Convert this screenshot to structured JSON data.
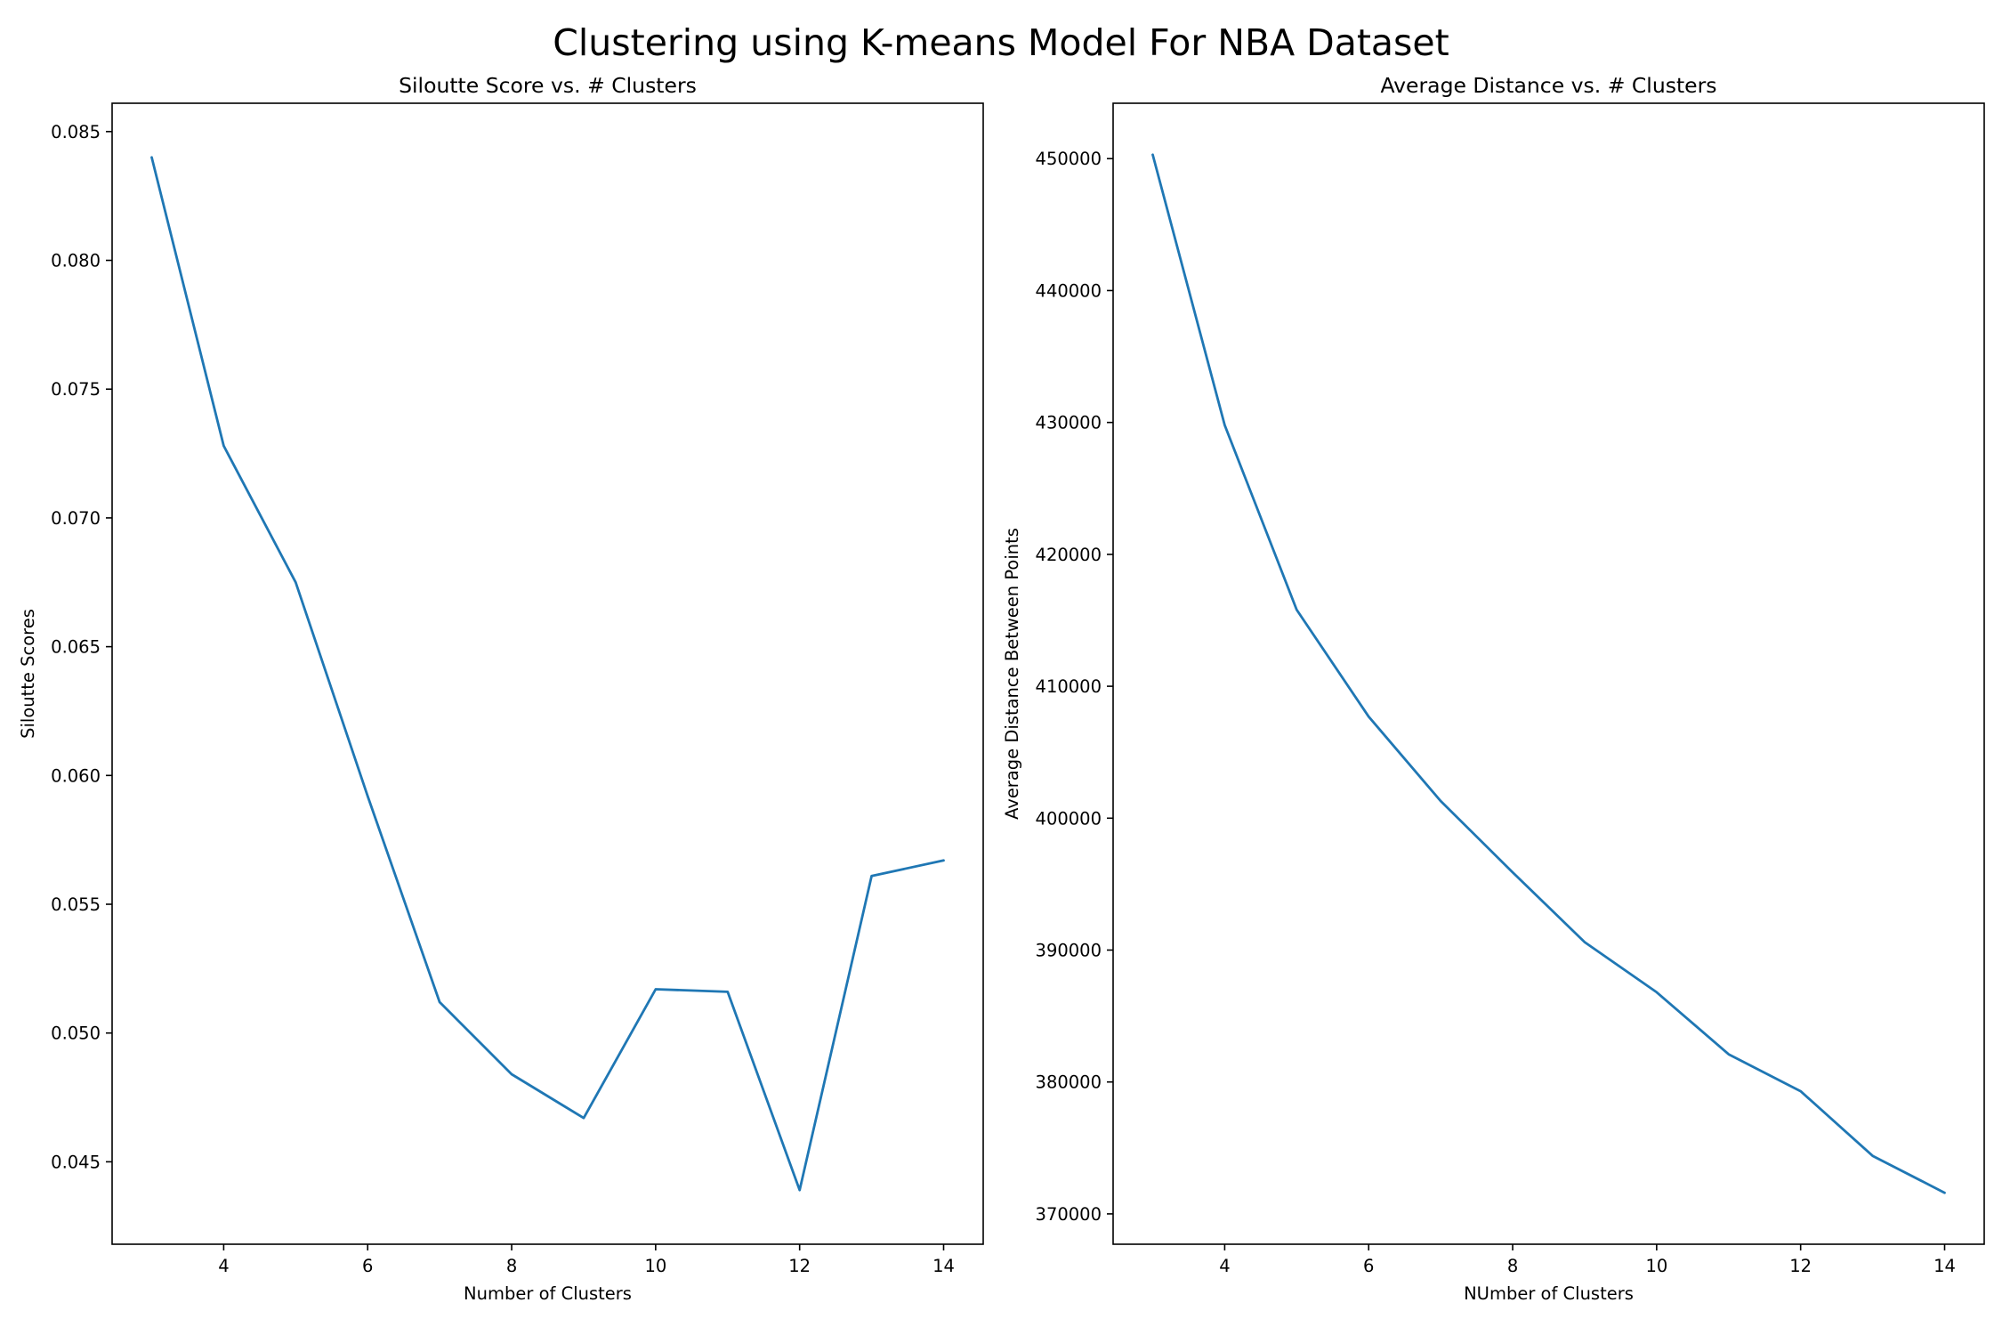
{
  "figure": {
    "title": "Clustering using K-means Model For NBA Dataset"
  },
  "chart_data": [
    {
      "type": "line",
      "title": "Siloutte Score vs. # Clusters",
      "xlabel": "Number of Clusters",
      "ylabel": "Siloutte Scores",
      "xlim": [
        2.45,
        14.55
      ],
      "ylim": [
        0.0418,
        0.0861
      ],
      "xticks": [
        4,
        6,
        8,
        10,
        12,
        14
      ],
      "xtick_labels": [
        "4",
        "6",
        "8",
        "10",
        "12",
        "14"
      ],
      "yticks": [
        0.045,
        0.05,
        0.055,
        0.06,
        0.065,
        0.07,
        0.075,
        0.08,
        0.085
      ],
      "ytick_labels": [
        "0.045",
        "0.050",
        "0.055",
        "0.060",
        "0.065",
        "0.070",
        "0.075",
        "0.080",
        "0.085"
      ],
      "grid": false,
      "color": "#1f77b4",
      "x": [
        3,
        4,
        5,
        6,
        7,
        8,
        9,
        10,
        11,
        12,
        13,
        14
      ],
      "y": [
        0.084,
        0.0728,
        0.0675,
        0.0592,
        0.0512,
        0.0484,
        0.0467,
        0.0517,
        0.0516,
        0.0439,
        0.0561,
        0.0567
      ]
    },
    {
      "type": "line",
      "title": "Average Distance vs. # Clusters",
      "xlabel": "NUmber of Clusters",
      "ylabel": "Average Distance Between Points",
      "xlim": [
        2.45,
        14.55
      ],
      "ylim": [
        367700,
        454200
      ],
      "xticks": [
        4,
        6,
        8,
        10,
        12,
        14
      ],
      "xtick_labels": [
        "4",
        "6",
        "8",
        "10",
        "12",
        "14"
      ],
      "yticks": [
        370000,
        380000,
        390000,
        400000,
        410000,
        420000,
        430000,
        440000,
        450000
      ],
      "ytick_labels": [
        "370000",
        "380000",
        "390000",
        "400000",
        "410000",
        "420000",
        "430000",
        "440000",
        "450000"
      ],
      "grid": false,
      "color": "#1f77b4",
      "x": [
        3,
        4,
        5,
        6,
        7,
        8,
        9,
        10,
        11,
        12,
        13,
        14
      ],
      "y": [
        450300,
        429800,
        415800,
        407700,
        401300,
        395900,
        390600,
        386800,
        382100,
        379300,
        374400,
        371600
      ]
    }
  ]
}
